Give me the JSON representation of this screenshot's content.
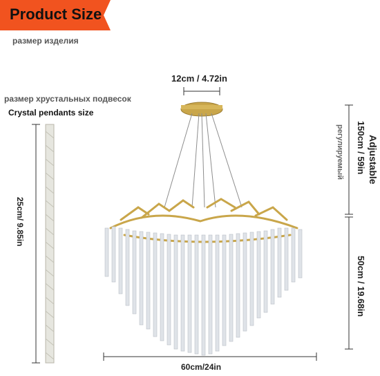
{
  "banner": {
    "title": "Product Size",
    "subtitle_ru": "размер изделия"
  },
  "dimensions": {
    "canopy_width": "12cm / 4.72in",
    "pendant_title_ru": "размер хрустальных подвесок",
    "pendant_title_en": "Crystal pendants size",
    "pendant_length": "25cm/ 9.85in",
    "adjustable_en": "Adjustable",
    "adjustable_value": "150cm / 59in",
    "adjustable_ru": "регулируемый",
    "body_height": "50cm / 19.68in",
    "diameter": "60cm/24in"
  },
  "colors": {
    "banner_bg": "#f1531f",
    "gold": "#c9a64a",
    "crystal": "#d9dde2"
  }
}
